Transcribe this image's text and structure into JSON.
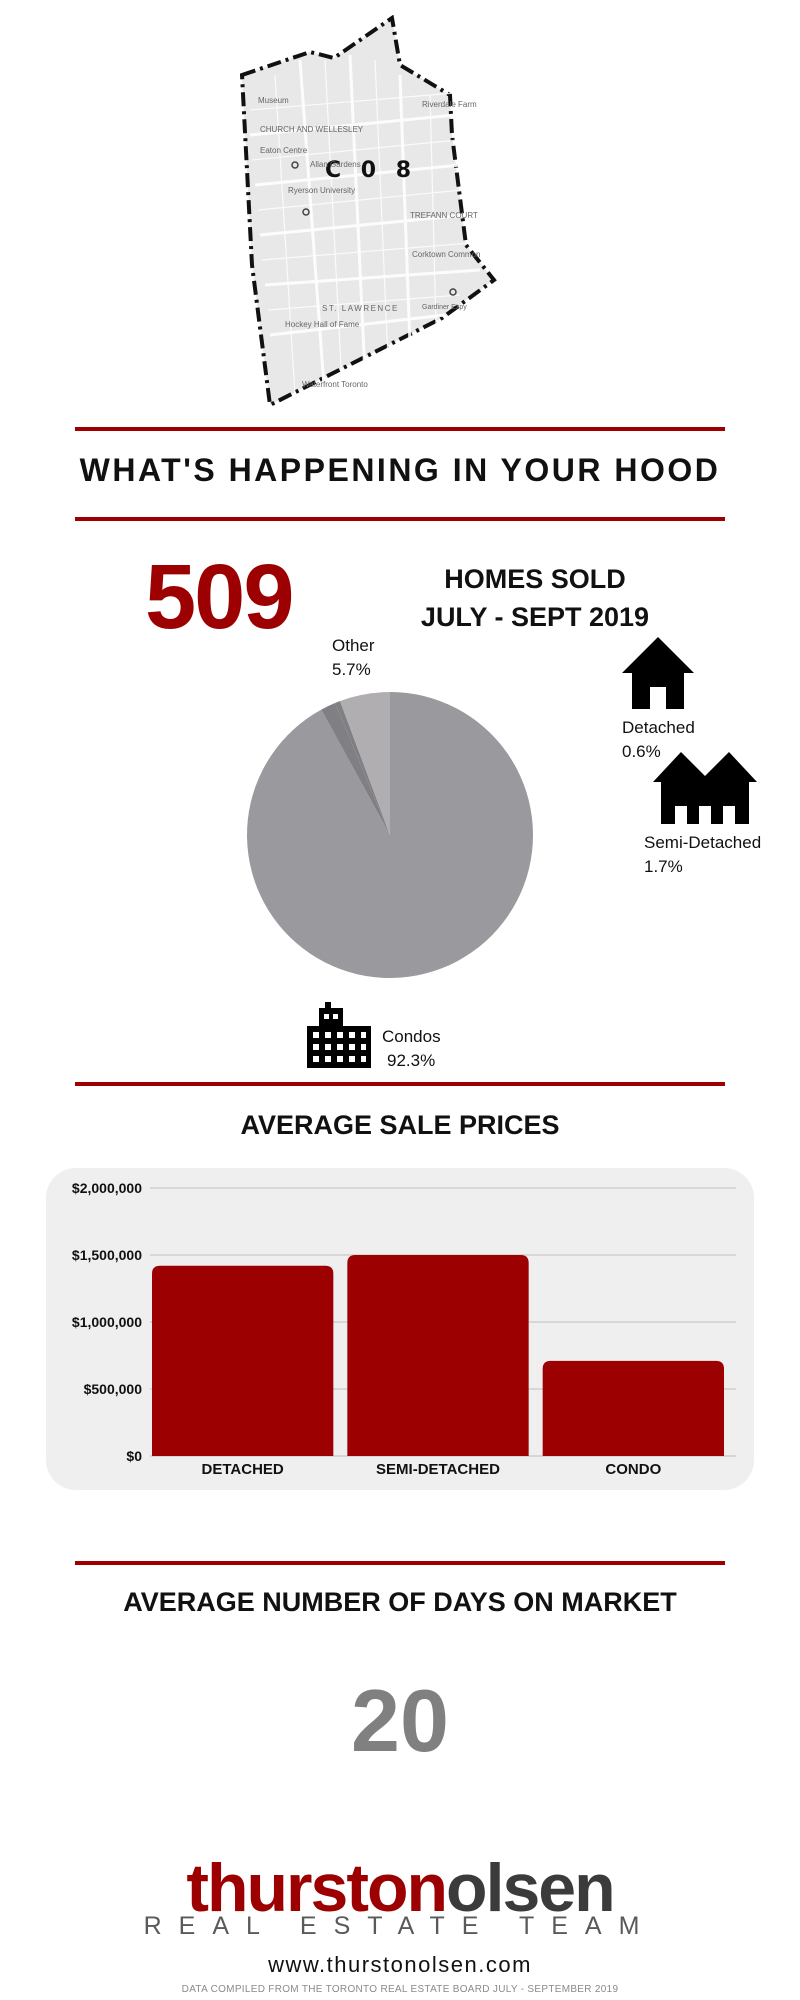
{
  "map": {
    "district_label": "C 0 8",
    "street_labels": [
      "Riverdale Farm",
      "CHURCH AND WELLESLEY",
      "Eaton Centre",
      "Allan Gardens",
      "Ryerson University",
      "TREFANN COURT",
      "Corktown Common",
      "ST. LAWRENCE",
      "Hockey Hall of Fame",
      "Gardiner Expy",
      "Waterfront Toronto",
      "Museum"
    ]
  },
  "hood_title": "WHAT'S HAPPENING IN YOUR HOOD",
  "homes": {
    "count": "509",
    "label_line1": "HOMES SOLD",
    "label_line2": "JULY - SEPT 2019"
  },
  "breakdown": {
    "other": {
      "name": "Other",
      "pct": "5.7%"
    },
    "detached": {
      "name": "Detached",
      "pct": "0.6%"
    },
    "semi": {
      "name": "Semi-Detached",
      "pct": "1.7%"
    },
    "condos": {
      "name": "Condos",
      "pct": "92.3%"
    }
  },
  "prices_title": "AVERAGE SALE PRICES",
  "days_title": "AVERAGE NUMBER OF DAYS ON MARKET",
  "days_value": "20",
  "brand": {
    "name_part1": "thurston",
    "name_part2": "olsen",
    "tagline": "REAL ESTATE TEAM",
    "website": "www.thurstonolsen.com"
  },
  "footnote": "DATA COMPILED FROM THE TORONTO REAL ESTATE BOARD JULY - SEPTEMBER 2019",
  "colors": {
    "accent": "#9c0000",
    "pie_main": "#9a9a9e",
    "pie_other": "#b0aeb0",
    "pie_small": "#808084",
    "days": "#808080"
  },
  "chart_data": [
    {
      "type": "pie",
      "categories": [
        "Condos",
        "Other",
        "Detached",
        "Semi-Detached"
      ],
      "values": [
        92.3,
        5.7,
        0.6,
        1.7
      ]
    },
    {
      "type": "bar",
      "categories": [
        "DETACHED",
        "SEMI-DETACHED",
        "CONDO"
      ],
      "values": [
        1420000,
        1500000,
        710000
      ],
      "ylim": [
        0,
        2000000
      ],
      "yticks": [
        0,
        500000,
        1000000,
        1500000,
        2000000
      ],
      "ytick_labels": [
        "$0",
        "$500,000",
        "$1,000,000",
        "$1,500,000",
        "$2,000,000"
      ],
      "grid": true,
      "color": "#9c0000"
    }
  ]
}
